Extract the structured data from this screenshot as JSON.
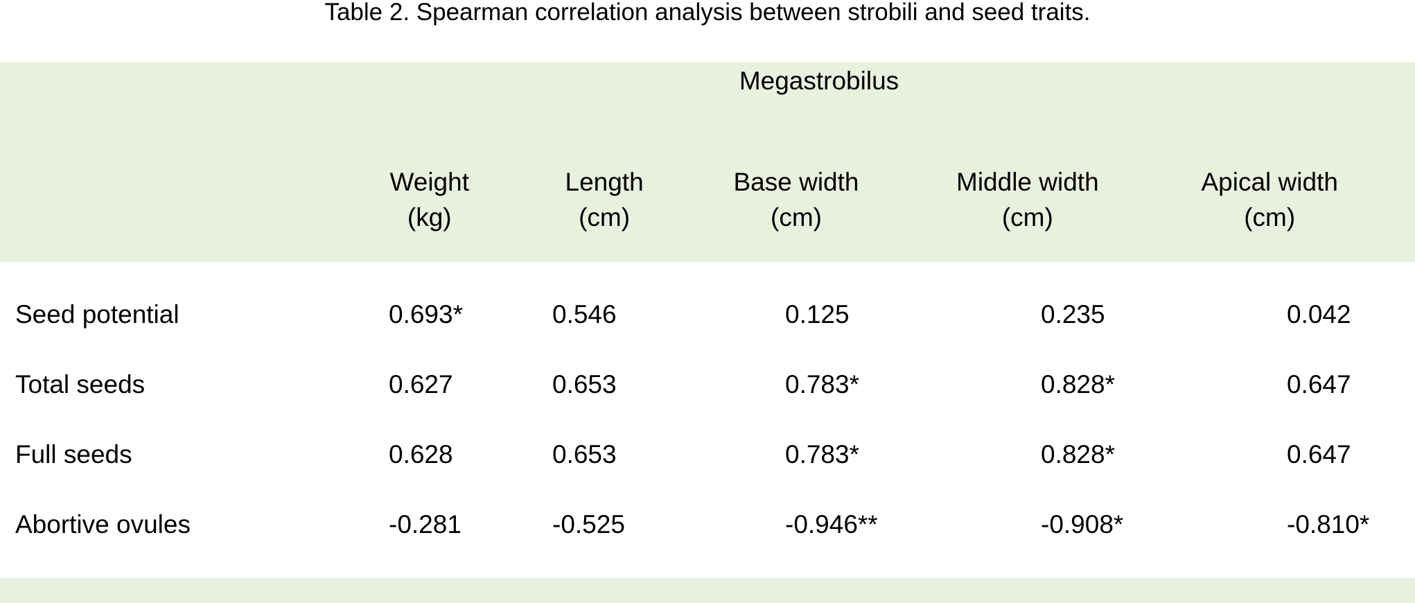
{
  "caption": "Table 2. Spearman correlation analysis between strobili and seed traits.",
  "colors": {
    "header_band": "#e9f0de",
    "background": "#ffffff",
    "text": "#000000"
  },
  "table": {
    "group_header": "Megastrobilus",
    "columns": [
      {
        "name": "Weight",
        "unit": "(kg)"
      },
      {
        "name": "Length",
        "unit": "(cm)"
      },
      {
        "name": "Base width",
        "unit": "(cm)"
      },
      {
        "name": "Middle width",
        "unit": "(cm)"
      },
      {
        "name": "Apical width",
        "unit": "(cm)"
      }
    ],
    "rows": [
      {
        "label": "Seed potential",
        "values": [
          "0.693*",
          "0.546",
          "0.125",
          "0.235",
          "0.042"
        ]
      },
      {
        "label": "Total seeds",
        "values": [
          "0.627",
          "0.653",
          "0.783*",
          "0.828*",
          "0.647"
        ]
      },
      {
        "label": "Full seeds",
        "values": [
          "0.628",
          "0.653",
          "0.783*",
          "0.828*",
          "0.647"
        ]
      },
      {
        "label": "Abortive ovules",
        "values": [
          "-0.281",
          "-0.525",
          "-0.946**",
          "-0.908*",
          "-0.810*"
        ]
      }
    ]
  }
}
